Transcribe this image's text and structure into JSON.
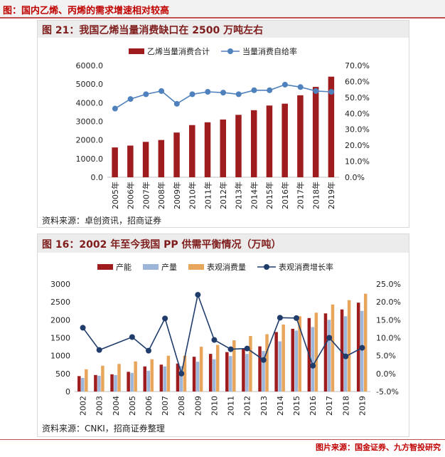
{
  "header": {
    "title": "图：国内乙烯、丙烯的需求增速相对较高"
  },
  "footer": {
    "source": "图片来源：国金证券、九方智投研究"
  },
  "fig21": {
    "title": "图 21：我国乙烯当量消费缺口在 2500 万吨左右",
    "source": "资料来源：卓创资讯，招商证券"
  },
  "fig16": {
    "title": "图 16：2002 年至今我国 PP 供需平衡情况（万吨）",
    "source": "资料来源：CNKI，招商证券整理"
  },
  "colors": {
    "dark_red": "#9e1b1e",
    "light_blue": "#9db5d8",
    "orange": "#e8a55c",
    "line_blue": "#4f81bd",
    "navy": "#1f3c6b"
  },
  "chart_data": [
    {
      "type": "bar",
      "categories": [
        "2005年",
        "2006年",
        "2007年",
        "2008年",
        "2009年",
        "2010年",
        "2011年",
        "2012年",
        "2013年",
        "2014年",
        "2015年",
        "2016年",
        "2017年",
        "2018年",
        "2019年"
      ],
      "series": [
        {
          "name": "乙烯当量消费合计",
          "type": "bar",
          "axis": "left",
          "values": [
            1600,
            1700,
            1900,
            2000,
            2400,
            2800,
            2950,
            3100,
            3350,
            3600,
            3850,
            3950,
            4400,
            4850,
            5400
          ]
        },
        {
          "name": "当量消费自给率",
          "type": "line",
          "axis": "right",
          "values": [
            43,
            49,
            52,
            54,
            46,
            52,
            53.5,
            53,
            52,
            54.5,
            54.5,
            58,
            56.5,
            54,
            53.5
          ]
        }
      ],
      "y_left": {
        "min": 0,
        "max": 6000,
        "ticks": [
          "0.0",
          "1000.0",
          "2000.0",
          "3000.0",
          "4000.0",
          "5000.0",
          "6000.0"
        ]
      },
      "y_right": {
        "min": 0,
        "max": 70,
        "ticks": [
          "0.0%",
          "10.0%",
          "20.0%",
          "30.0%",
          "40.0%",
          "50.0%",
          "60.0%",
          "70.0%"
        ]
      },
      "legend": "top"
    },
    {
      "type": "bar",
      "categories": [
        "2002",
        "2003",
        "2004",
        "2005",
        "2006",
        "2007",
        "2008",
        "2009",
        "2010",
        "2011",
        "2012",
        "2013",
        "2014",
        "2015",
        "2016",
        "2017",
        "2018",
        "2019"
      ],
      "series": [
        {
          "name": "产能",
          "type": "bar",
          "axis": "left",
          "values": [
            430,
            460,
            480,
            550,
            700,
            750,
            780,
            970,
            1050,
            1100,
            1200,
            1260,
            1660,
            1750,
            2050,
            2180,
            2290,
            2480
          ]
        },
        {
          "name": "产量",
          "type": "bar",
          "axis": "left",
          "values": [
            380,
            440,
            460,
            520,
            580,
            700,
            710,
            830,
            900,
            990,
            1050,
            1130,
            1400,
            1700,
            1800,
            2000,
            2100,
            2250
          ]
        },
        {
          "name": "表观消费量",
          "type": "bar",
          "axis": "left",
          "values": [
            620,
            720,
            770,
            840,
            900,
            1000,
            1000,
            1250,
            1300,
            1430,
            1550,
            1600,
            1870,
            2100,
            2200,
            2430,
            2550,
            2730
          ]
        },
        {
          "name": "表观消费增长率",
          "type": "line",
          "axis": "right",
          "values": [
            12.8,
            6.6,
            null,
            10.2,
            6.4,
            15.4,
            0,
            22,
            9.4,
            6.8,
            7,
            3.8,
            15.6,
            15.5,
            2.2,
            10,
            4.8,
            7.2
          ]
        }
      ],
      "y_left": {
        "min": 0,
        "max": 3000,
        "ticks": [
          "0",
          "500",
          "1000",
          "1500",
          "2000",
          "2500",
          "3000"
        ]
      },
      "y_right": {
        "min": -5,
        "max": 25,
        "ticks": [
          "-5.0%",
          "0.0%",
          "5.0%",
          "10.0%",
          "15.0%",
          "20.0%",
          "25.0%"
        ]
      },
      "legend": "top"
    }
  ]
}
